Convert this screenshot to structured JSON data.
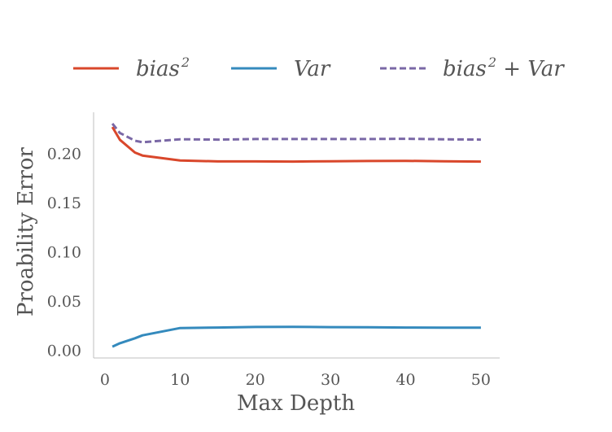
{
  "chart_data": {
    "type": "line",
    "xlabel": "Max Depth",
    "ylabel": "Proability Error",
    "xlim": [
      -1.5,
      52.5
    ],
    "ylim": [
      -0.008,
      0.242
    ],
    "xticks": [
      0,
      10,
      20,
      30,
      40,
      50
    ],
    "xtick_labels": [
      "0",
      "10",
      "20",
      "30",
      "40",
      "50"
    ],
    "yticks": [
      0.0,
      0.05,
      0.1,
      0.15,
      0.2
    ],
    "ytick_labels": [
      "0.00",
      "0.05",
      "0.10",
      "0.15",
      "0.20"
    ],
    "grid": false,
    "legend_position": "top",
    "series": [
      {
        "name": "bias",
        "name_sup": "2",
        "color": "#d9472b",
        "dash": "solid",
        "x": [
          1,
          2,
          4,
          5,
          10,
          15,
          20,
          25,
          30,
          35,
          40,
          45,
          50
        ],
        "values": [
          0.227,
          0.214,
          0.201,
          0.198,
          0.193,
          0.192,
          0.192,
          0.1918,
          0.1922,
          0.1924,
          0.1926,
          0.1922,
          0.1918
        ]
      },
      {
        "name": "Var",
        "name_sup": "",
        "color": "#348abd",
        "dash": "solid",
        "x": [
          1,
          2,
          4,
          5,
          10,
          15,
          20,
          25,
          30,
          35,
          40,
          45,
          50
        ],
        "values": [
          0.0035,
          0.007,
          0.012,
          0.015,
          0.0225,
          0.023,
          0.0235,
          0.0237,
          0.0234,
          0.0232,
          0.023,
          0.0229,
          0.0228
        ]
      },
      {
        "name": "bias",
        "name_sup": "2",
        "name_suffix": " + Var",
        "color": "#7a68a6",
        "dash": "dashed",
        "x": [
          1,
          2,
          4,
          5,
          10,
          15,
          20,
          25,
          30,
          35,
          40,
          45,
          50
        ],
        "values": [
          0.2305,
          0.221,
          0.213,
          0.2115,
          0.2145,
          0.2142,
          0.2148,
          0.2148,
          0.2148,
          0.2148,
          0.215,
          0.2145,
          0.2142
        ]
      }
    ]
  }
}
